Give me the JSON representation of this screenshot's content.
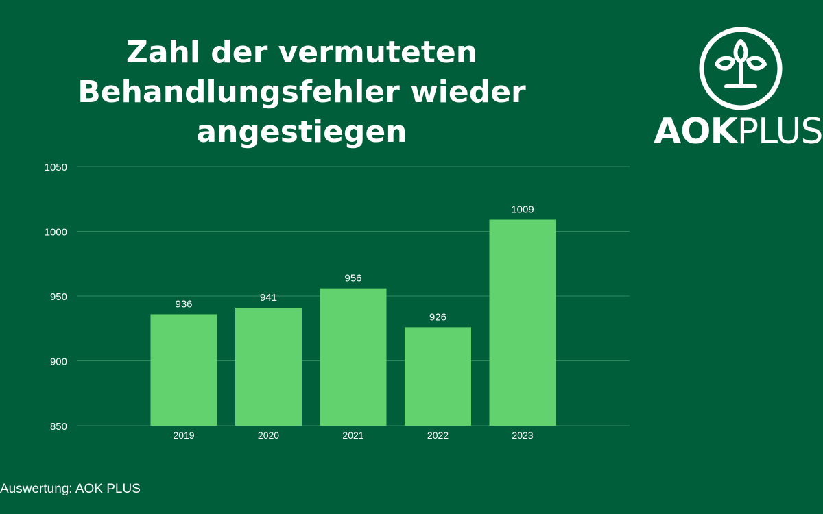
{
  "title": "Zahl der vermuteten Behandlungsfehler wieder angestiegen",
  "logo": {
    "text_bold": "AOK",
    "text_light": "PLUS"
  },
  "source": "Auswertung: AOK PLUS",
  "colors": {
    "background": "#005e3a",
    "bar": "#62d26f",
    "grid": "#2f8a5e",
    "text": "#ffffff"
  },
  "chart_data": {
    "type": "bar",
    "title": "Zahl der vermuteten Behandlungsfehler wieder angestiegen",
    "categories": [
      "2019",
      "2020",
      "2021",
      "2022",
      "2023"
    ],
    "values": [
      936,
      941,
      956,
      926,
      1009
    ],
    "data_labels": [
      "936",
      "941",
      "956",
      "926",
      "1009"
    ],
    "yticks": [
      "1050",
      "1000",
      "950",
      "900",
      "850"
    ],
    "ylim": [
      850,
      1050
    ],
    "xlabel": "",
    "ylabel": "",
    "grid": true,
    "legend": "none"
  }
}
